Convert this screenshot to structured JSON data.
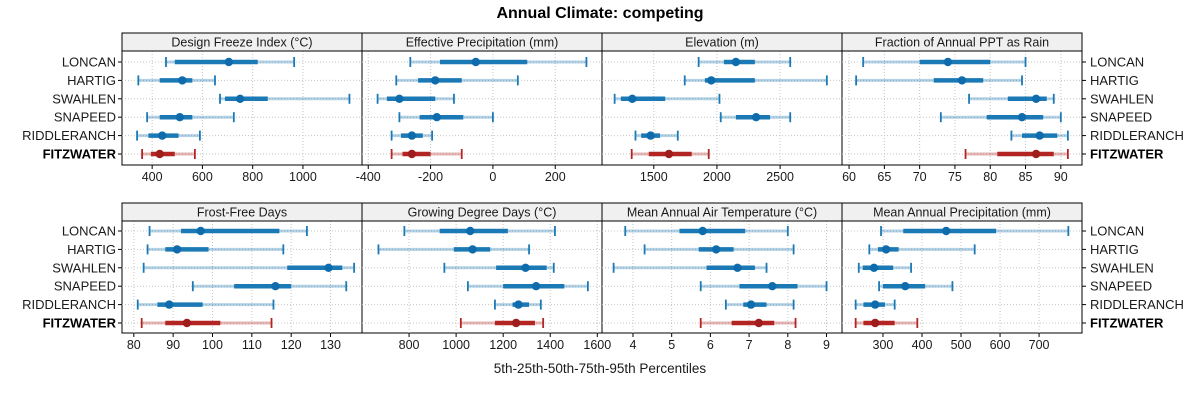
{
  "title": "Annual Climate: competing",
  "footer": "5th-25th-50th-75th-95th Percentiles",
  "colors": {
    "series_blue": "#1b79b5",
    "series_blue_dot": "#0f6cac",
    "highlight_red": "#b22523",
    "highlight_red_dot": "#9f1d1d",
    "strip_background": "#f0f0f0",
    "grid_gray": "#c4c4c4"
  },
  "chart_data": {
    "type": "dotplot-interval",
    "title": "Annual Climate: competing",
    "xlabel": "5th-25th-50th-75th-95th Percentiles",
    "percentiles": [
      "5th",
      "25th",
      "50th",
      "75th",
      "95th"
    ],
    "sites": [
      "LONCAN",
      "HARTIG",
      "SWAHLEN",
      "SNAPEED",
      "RIDDLERANCH",
      "FITZWATER"
    ],
    "highlight_site": "FITZWATER",
    "legend_position": "none",
    "grid": "dotted",
    "panels": [
      {
        "title": "Design Freeze Index (°C)",
        "row": 0,
        "col": 0,
        "xlim": [
          280,
          1235
        ],
        "ticks": [
          400,
          600,
          800,
          1000
        ],
        "values": {
          "LONCAN": [
            455,
            490,
            705,
            820,
            965
          ],
          "HARTIG": [
            345,
            430,
            520,
            560,
            650
          ],
          "SWAHLEN": [
            670,
            690,
            750,
            860,
            1185
          ],
          "SNAPEED": [
            380,
            430,
            510,
            560,
            725
          ],
          "RIDDLERANCH": [
            340,
            385,
            440,
            505,
            590
          ],
          "FITZWATER": [
            360,
            395,
            430,
            490,
            570
          ]
        }
      },
      {
        "title": "Effective Precipitation (mm)",
        "row": 0,
        "col": 1,
        "xlim": [
          -420,
          350
        ],
        "ticks": [
          -400,
          -200,
          0,
          200
        ],
        "values": {
          "LONCAN": [
            -265,
            -170,
            -55,
            110,
            300
          ],
          "HARTIG": [
            -310,
            -240,
            -185,
            -100,
            80
          ],
          "SWAHLEN": [
            -370,
            -340,
            -300,
            -185,
            -125
          ],
          "SNAPEED": [
            -300,
            -235,
            -180,
            -95,
            0
          ],
          "RIDDLERANCH": [
            -325,
            -295,
            -260,
            -225,
            -195
          ],
          "FITZWATER": [
            -325,
            -290,
            -260,
            -200,
            -100
          ]
        }
      },
      {
        "title": "Elevation (m)",
        "row": 0,
        "col": 2,
        "xlim": [
          1090,
          2990
        ],
        "ticks": [
          1500,
          2000,
          2500
        ],
        "values": {
          "LONCAN": [
            1855,
            2055,
            2150,
            2300,
            2580
          ],
          "HARTIG": [
            1745,
            1905,
            1955,
            2300,
            2870
          ],
          "SWAHLEN": [
            1190,
            1240,
            1330,
            1590,
            2020
          ],
          "SNAPEED": [
            2030,
            2150,
            2310,
            2420,
            2580
          ],
          "RIDDLERANCH": [
            1355,
            1400,
            1475,
            1550,
            1690
          ],
          "FITZWATER": [
            1325,
            1460,
            1620,
            1800,
            1935
          ]
        }
      },
      {
        "title": "Fraction of Annual PPT as Rain",
        "row": 0,
        "col": 3,
        "xlim": [
          59,
          93
        ],
        "ticks": [
          60,
          65,
          70,
          75,
          80,
          85,
          90
        ],
        "values": {
          "LONCAN": [
            62,
            70,
            74,
            80,
            85
          ],
          "HARTIG": [
            61,
            72,
            76,
            79,
            84.5
          ],
          "SWAHLEN": [
            77,
            82.5,
            86.5,
            88,
            89
          ],
          "SNAPEED": [
            73,
            79.5,
            84.5,
            87.5,
            90
          ],
          "RIDDLERANCH": [
            83,
            84.5,
            87,
            89.5,
            91
          ],
          "FITZWATER": [
            76.5,
            81,
            86.5,
            89,
            91
          ]
        }
      },
      {
        "title": "Frost-Free Days",
        "row": 1,
        "col": 0,
        "xlim": [
          77,
          138
        ],
        "ticks": [
          80,
          90,
          100,
          110,
          120,
          130
        ],
        "values": {
          "LONCAN": [
            84,
            92,
            97,
            117,
            124
          ],
          "HARTIG": [
            83.5,
            88,
            91,
            99,
            118
          ],
          "SWAHLEN": [
            82.5,
            119,
            129.5,
            133,
            136
          ],
          "SNAPEED": [
            95,
            105.5,
            116,
            120,
            134
          ],
          "RIDDLERANCH": [
            81,
            86,
            89,
            97.5,
            115.5
          ],
          "FITZWATER": [
            82,
            88,
            93.5,
            102,
            115
          ]
        }
      },
      {
        "title": "Growing Degree Days (°C)",
        "row": 1,
        "col": 1,
        "xlim": [
          600,
          1620
        ],
        "ticks": [
          800,
          1000,
          1200,
          1400,
          1600
        ],
        "values": {
          "LONCAN": [
            780,
            930,
            1060,
            1220,
            1420
          ],
          "HARTIG": [
            670,
            990,
            1070,
            1145,
            1310
          ],
          "SWAHLEN": [
            950,
            1170,
            1295,
            1385,
            1415
          ],
          "SNAPEED": [
            1050,
            1200,
            1340,
            1460,
            1560
          ],
          "RIDDLERANCH": [
            1165,
            1240,
            1265,
            1310,
            1360
          ],
          "FITZWATER": [
            1020,
            1165,
            1255,
            1335,
            1370
          ]
        }
      },
      {
        "title": "Mean Annual Air Temperature (°C)",
        "row": 1,
        "col": 2,
        "xlim": [
          3.2,
          9.4
        ],
        "ticks": [
          4,
          5,
          6,
          7,
          8,
          9
        ],
        "values": {
          "LONCAN": [
            3.8,
            5.2,
            5.8,
            6.9,
            8.0
          ],
          "HARTIG": [
            4.3,
            5.7,
            6.15,
            6.6,
            8.15
          ],
          "SWAHLEN": [
            3.5,
            5.9,
            6.7,
            7.15,
            7.45
          ],
          "SNAPEED": [
            5.75,
            6.75,
            7.6,
            8.25,
            9.0
          ],
          "RIDDLERANCH": [
            6.4,
            6.85,
            7.05,
            7.45,
            8.15
          ],
          "FITZWATER": [
            5.75,
            6.55,
            7.25,
            7.65,
            8.2
          ]
        }
      },
      {
        "title": "Mean Annual Precipitation (mm)",
        "row": 1,
        "col": 3,
        "xlim": [
          195,
          810
        ],
        "ticks": [
          300,
          400,
          500,
          600,
          700
        ],
        "values": {
          "LONCAN": [
            295,
            352,
            462,
            590,
            775
          ],
          "HARTIG": [
            265,
            287,
            308,
            340,
            535
          ],
          "SWAHLEN": [
            238,
            248,
            277,
            326,
            372
          ],
          "SNAPEED": [
            290,
            300,
            357,
            408,
            478
          ],
          "RIDDLERANCH": [
            230,
            250,
            280,
            305,
            330
          ],
          "FITZWATER": [
            230,
            250,
            280,
            330,
            388
          ]
        }
      }
    ]
  }
}
